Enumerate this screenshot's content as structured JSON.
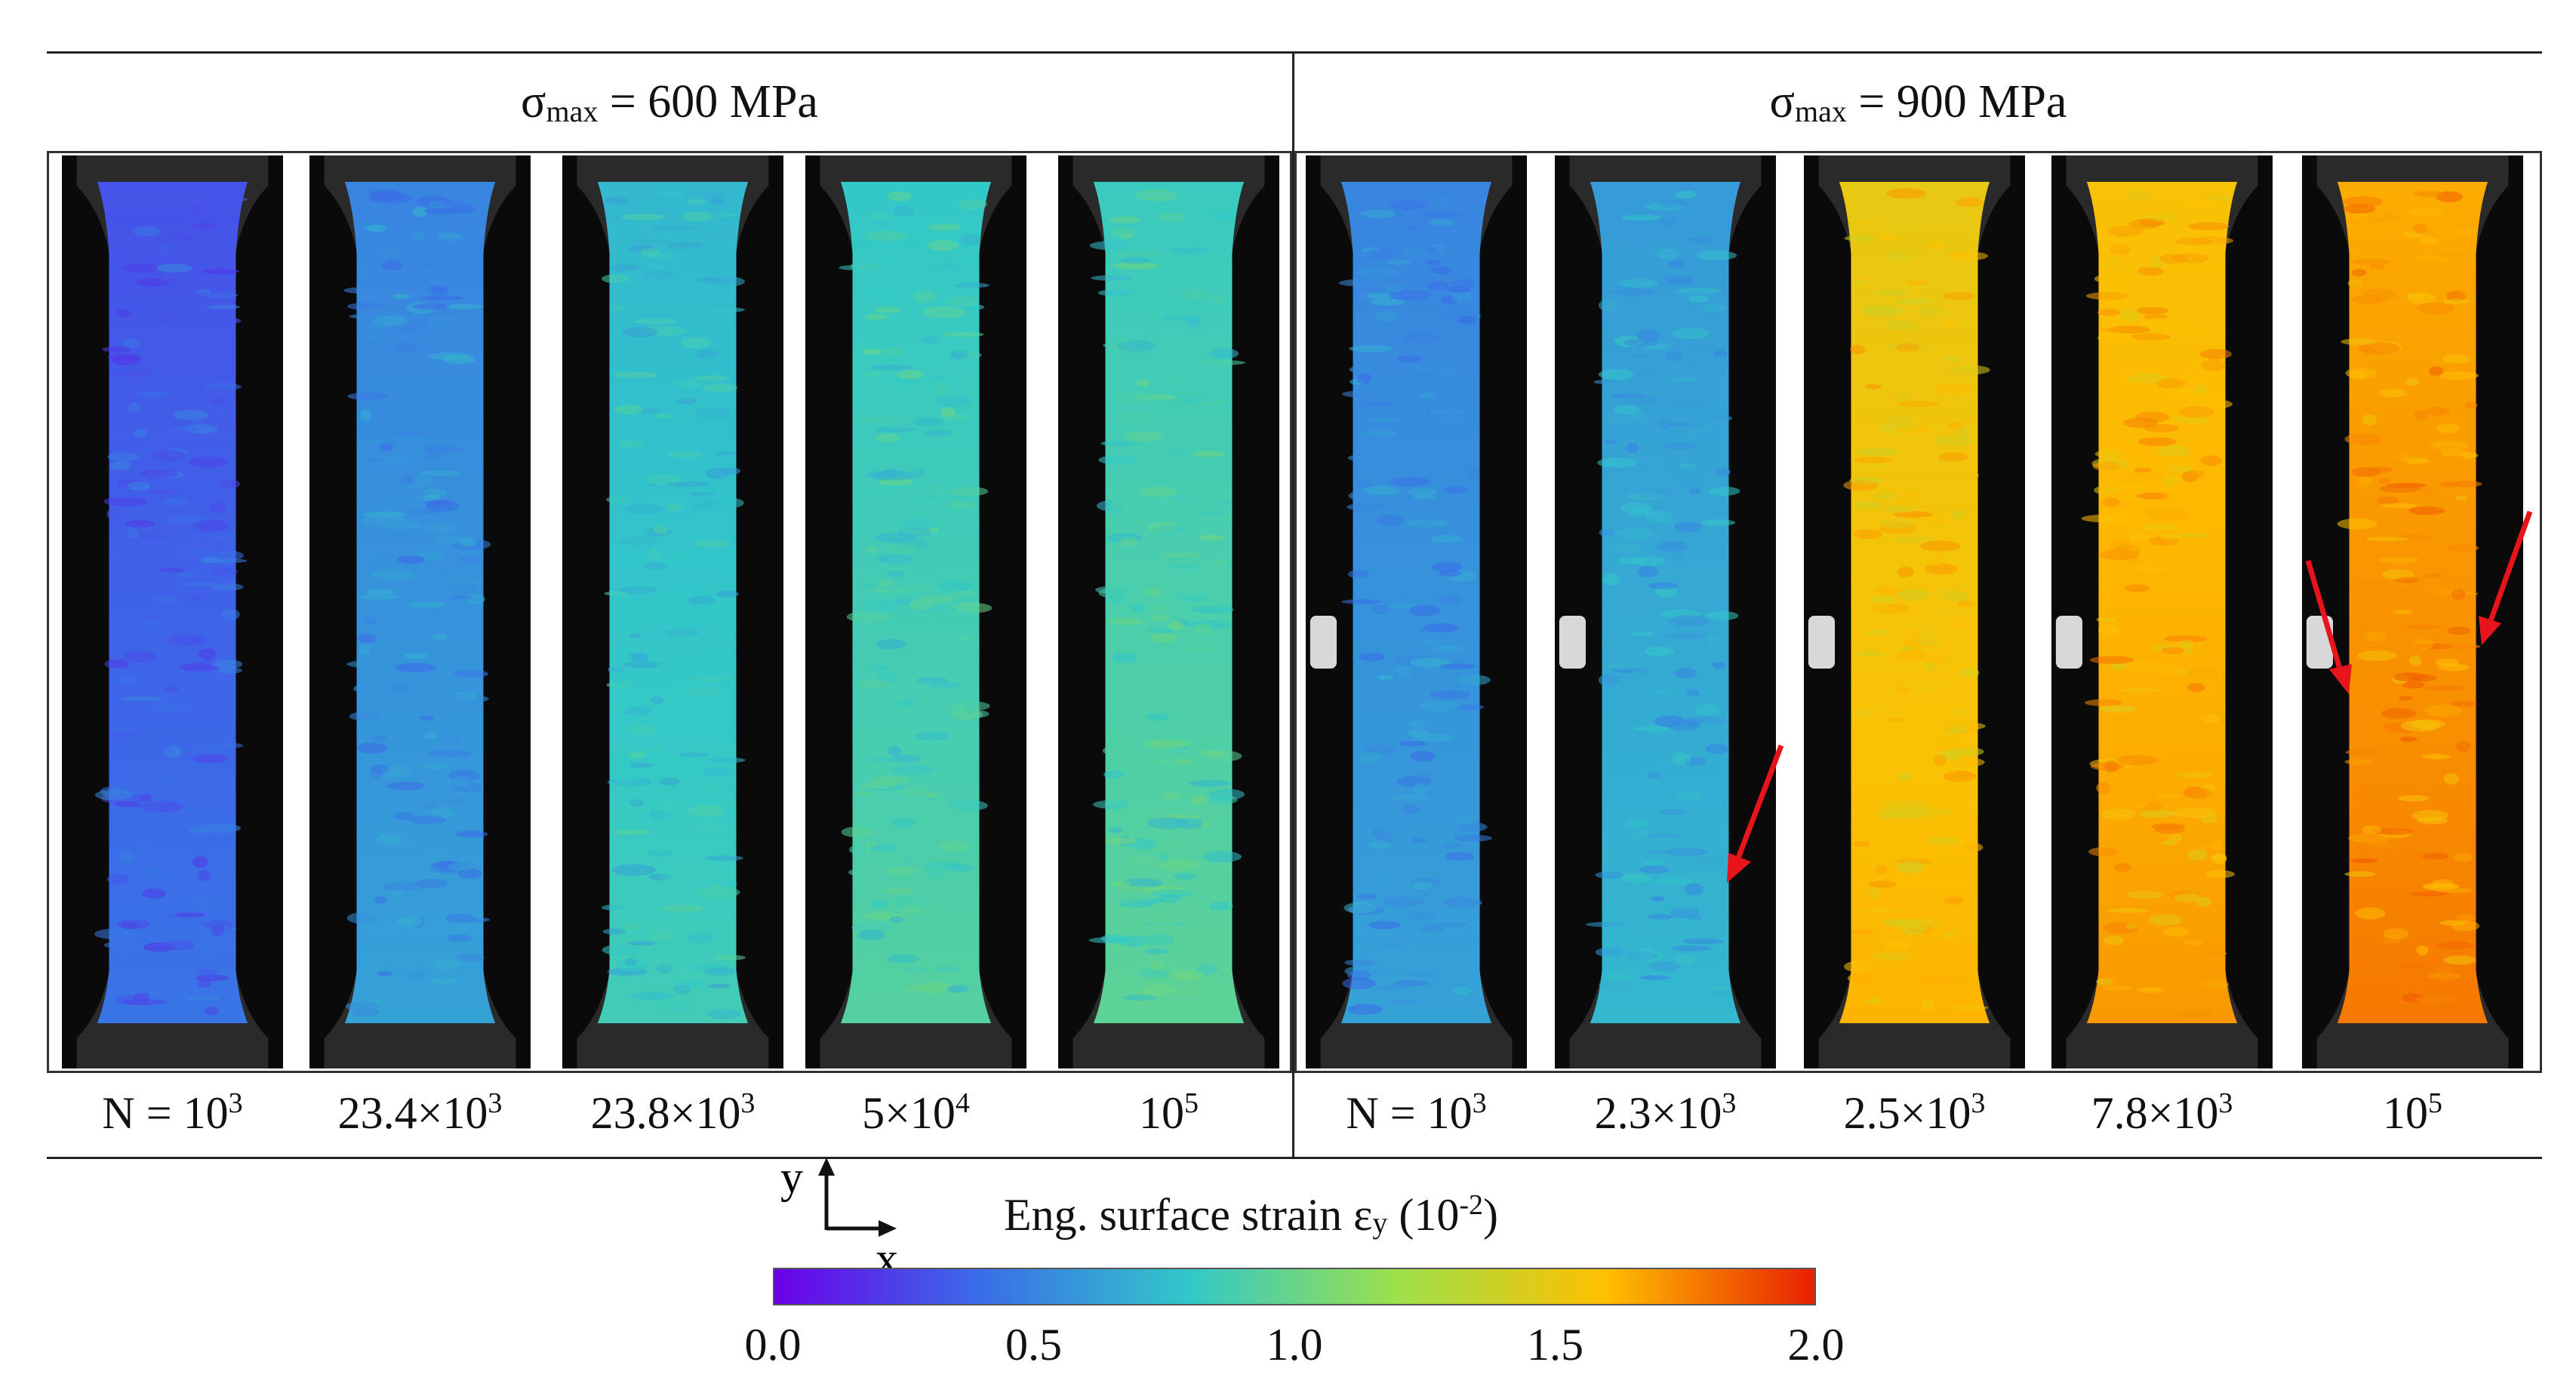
{
  "groups": [
    {
      "prefix": "σ",
      "sub": "max",
      "suffix": " = 600 MPa"
    },
    {
      "prefix": "σ",
      "sub": "max",
      "suffix": " = 900 MPa"
    }
  ],
  "panels": [
    {
      "pre": "N = 10",
      "exp": "3",
      "mid": "",
      "strain_level": 0.35
    },
    {
      "pre": "23.4×10",
      "exp": "3",
      "mid": "",
      "strain_level": 0.55
    },
    {
      "pre": "23.8×10",
      "exp": "3",
      "mid": "",
      "strain_level": 0.78
    },
    {
      "pre": "5×10",
      "exp": "4",
      "mid": "",
      "strain_level": 0.85
    },
    {
      "pre": "10",
      "exp": "5",
      "mid": "",
      "strain_level": 0.88
    },
    {
      "pre": "N = 10",
      "exp": "3",
      "mid": "",
      "strain_level": 0.55
    },
    {
      "pre": "2.3×10",
      "exp": "3",
      "mid": "",
      "strain_level": 0.65
    },
    {
      "pre": "2.5×10",
      "exp": "3",
      "mid": "",
      "strain_level": 1.55
    },
    {
      "pre": "7.8×10",
      "exp": "3",
      "mid": "",
      "strain_level": 1.62
    },
    {
      "pre": "10",
      "exp": "5",
      "mid": "",
      "strain_level": 1.7
    }
  ],
  "axes_labels": {
    "y": "y",
    "x": "x"
  },
  "colorbar": {
    "title_pre": "Eng. surface strain ε",
    "title_sub": "y",
    "title_mid": " (10",
    "title_exp": "-2",
    "title_end": ")",
    "ticks": [
      "0.0",
      "0.5",
      "1.0",
      "1.5",
      "2.0"
    ],
    "min": 0.0,
    "max": 2.0,
    "colors": [
      "#6a00e8",
      "#3a6ee8",
      "#32c8c8",
      "#9ee04a",
      "#ffc000",
      "#e82000"
    ]
  },
  "arrow_color": "#e8141c"
}
